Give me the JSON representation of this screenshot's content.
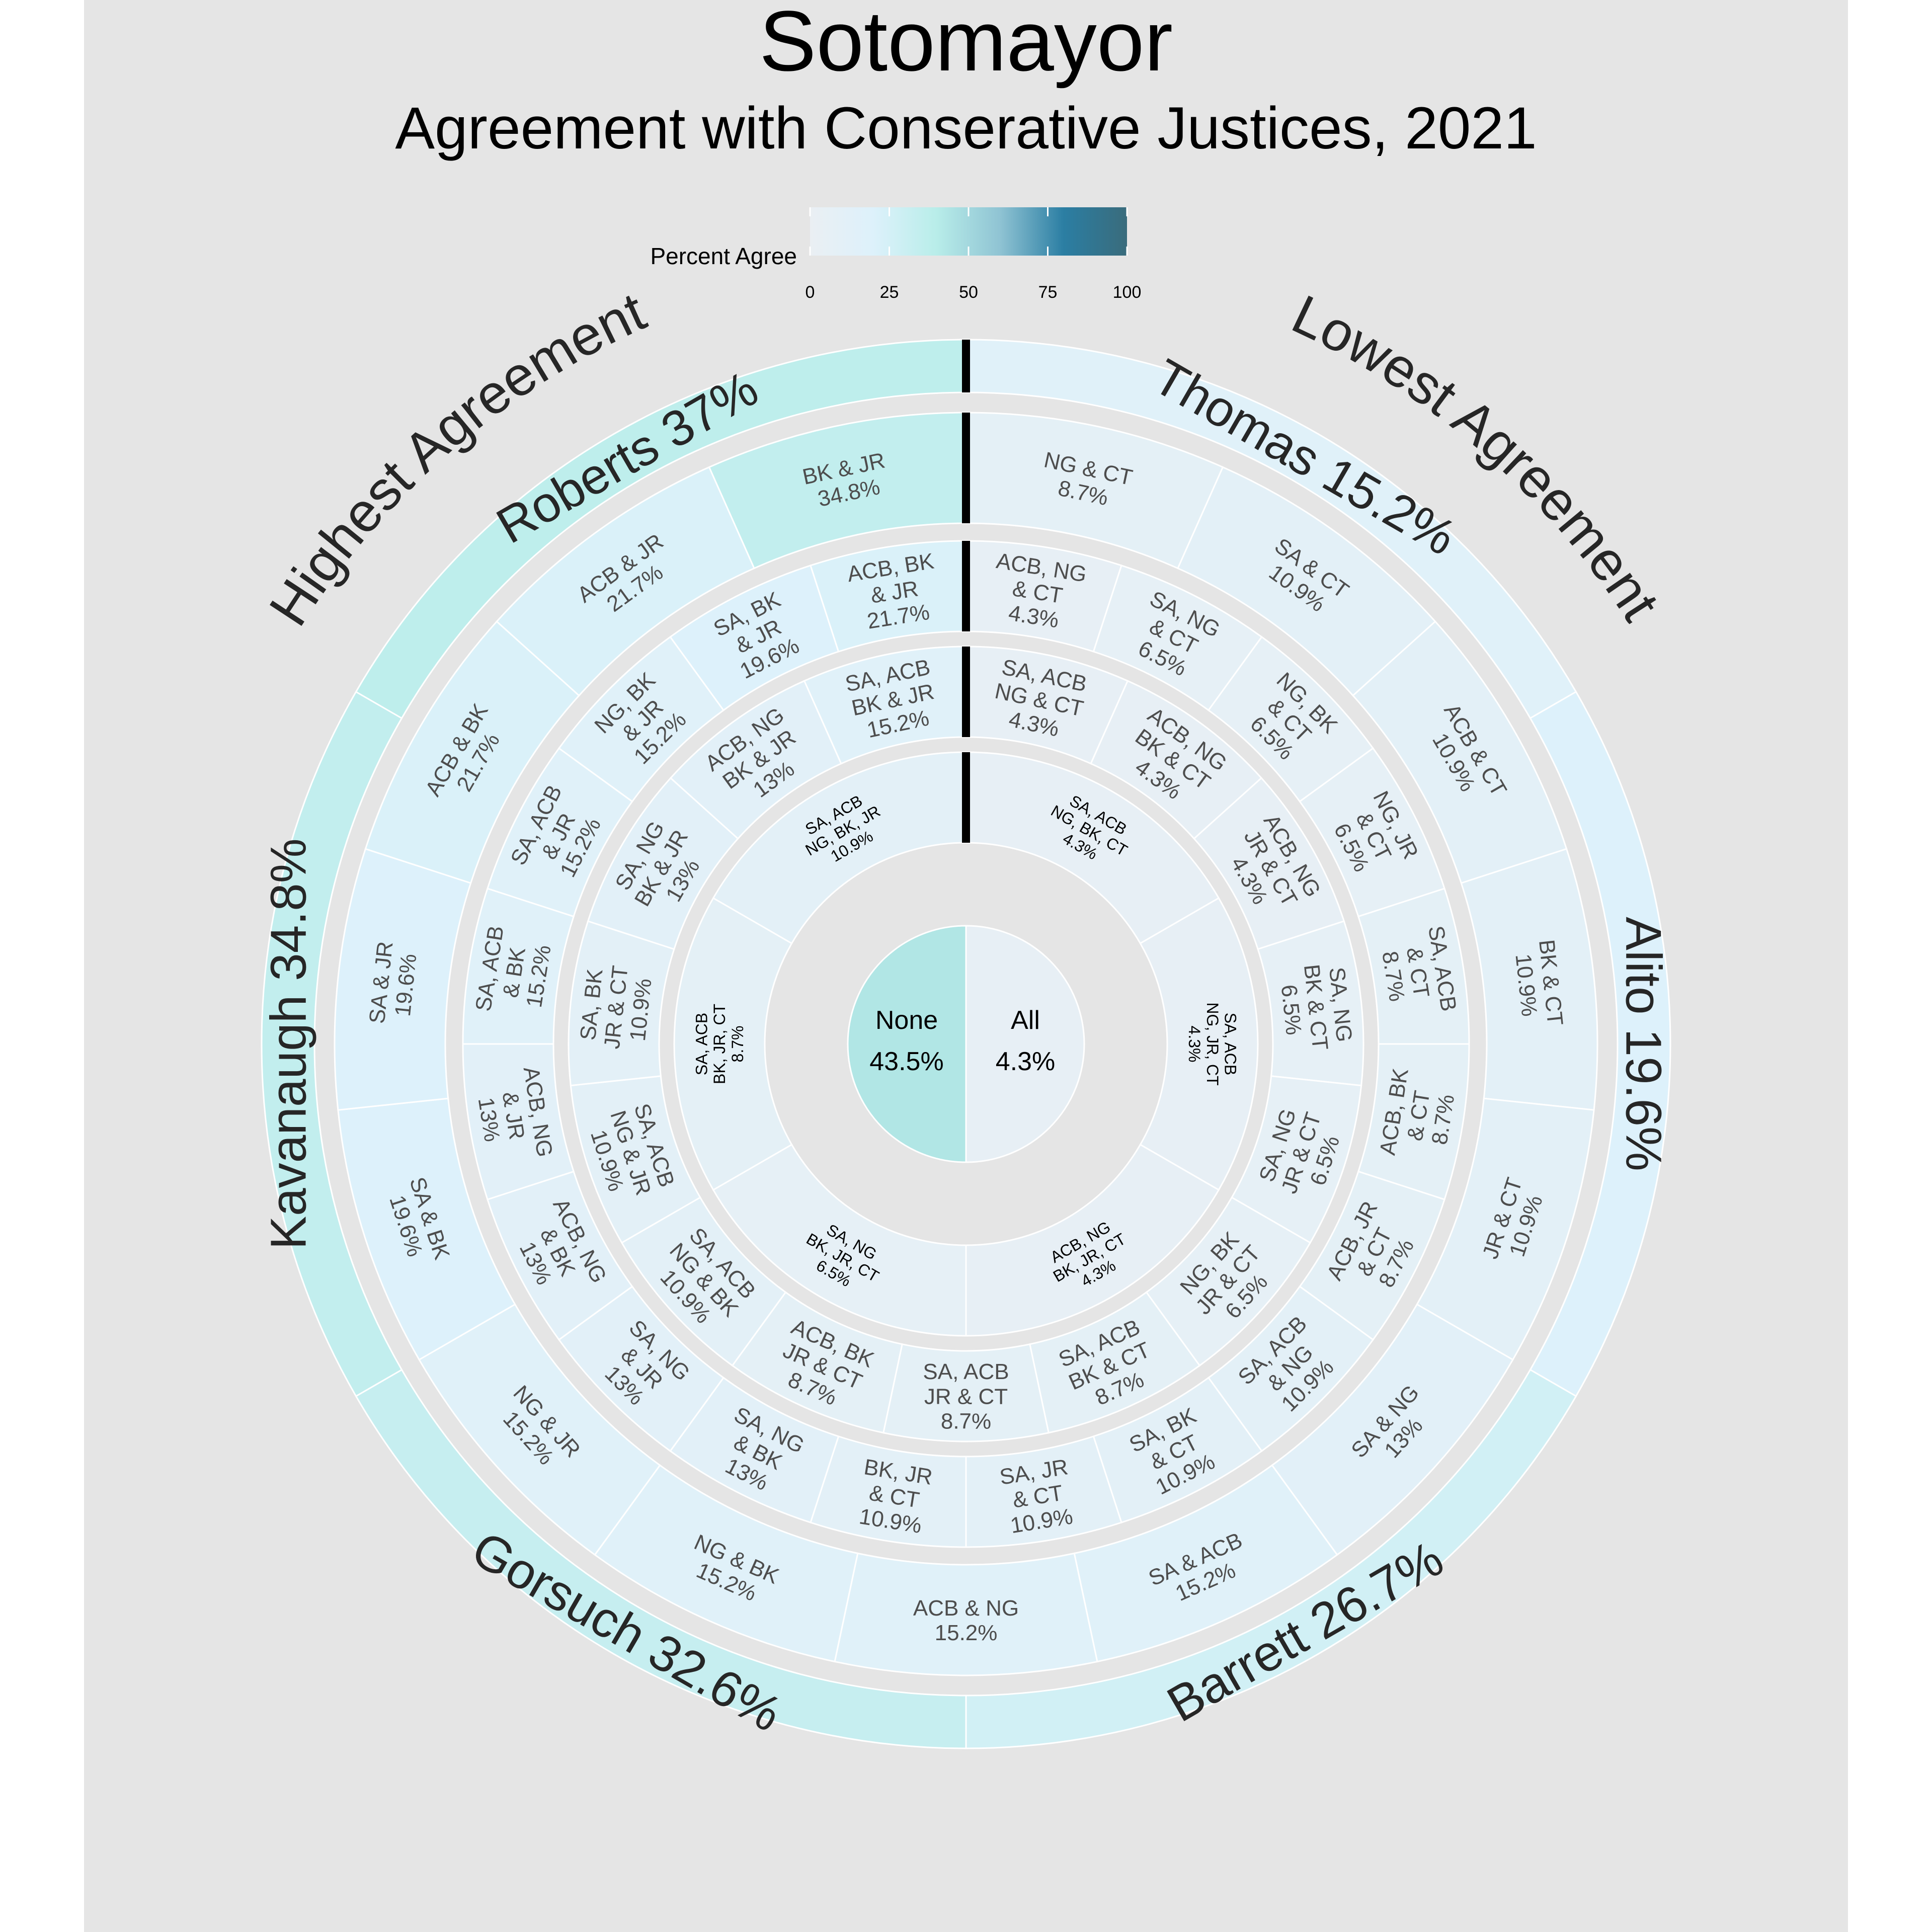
{
  "chart_data": {
    "type": "sunburst",
    "title": "Sotomayor",
    "subtitle": "Agreement with Conserative Justices, 2021",
    "legend": {
      "title": "Percent Agree",
      "ticks": [
        "0",
        "25",
        "50",
        "75",
        "100"
      ],
      "range": [
        0,
        100
      ],
      "colors": [
        "#eaeff3",
        "#ddf1fb",
        "#b8ede9",
        "#8fc3d3",
        "#2b7ea3",
        "#3a6c7c"
      ]
    },
    "outer_annotations": {
      "left": "Highest  Agreement",
      "right": "Lowest  Agreement"
    },
    "center": [
      {
        "label": "None",
        "value": "43.5%",
        "percent": 43.5
      },
      {
        "label": "All",
        "value": "4.3%",
        "percent": 4.3
      }
    ],
    "rings": [
      {
        "level": "one justice",
        "segments": [
          {
            "label": "Thomas 15.2%",
            "percent": 15.2
          },
          {
            "label": "Alito 19.6%",
            "percent": 19.6
          },
          {
            "label": "Barrett 26.7%",
            "percent": 26.7
          },
          {
            "label": "Gorsuch 32.6%",
            "percent": 32.6
          },
          {
            "label": "Kavanaugh 34.8%",
            "percent": 34.8
          },
          {
            "label": "Roberts 37%",
            "percent": 37.0
          }
        ]
      },
      {
        "level": "two justices",
        "segments": [
          {
            "label": "NG & CT",
            "value": "8.7%",
            "percent": 8.7
          },
          {
            "label": "SA & CT",
            "value": "10.9%",
            "percent": 10.9
          },
          {
            "label": "ACB & CT",
            "value": "10.9%",
            "percent": 10.9
          },
          {
            "label": "BK & CT",
            "value": "10.9%",
            "percent": 10.9
          },
          {
            "label": "JR & CT",
            "value": "10.9%",
            "percent": 10.9
          },
          {
            "label": "SA & NG",
            "value": "13%",
            "percent": 13.0
          },
          {
            "label": "SA & ACB",
            "value": "15.2%",
            "percent": 15.2
          },
          {
            "label": "ACB & NG",
            "value": "15.2%",
            "percent": 15.2
          },
          {
            "label": "NG & BK",
            "value": "15.2%",
            "percent": 15.2
          },
          {
            "label": "NG & JR",
            "value": "15.2%",
            "percent": 15.2
          },
          {
            "label": "SA & BK",
            "value": "19.6%",
            "percent": 19.6
          },
          {
            "label": "SA & JR",
            "value": "19.6%",
            "percent": 19.6
          },
          {
            "label": "ACB & BK",
            "value": "21.7%",
            "percent": 21.7
          },
          {
            "label": "ACB & JR",
            "value": "21.7%",
            "percent": 21.7
          },
          {
            "label": "BK & JR",
            "value": "34.8%",
            "percent": 34.8
          }
        ]
      },
      {
        "level": "three justices",
        "segments": [
          {
            "label": "ACB, NG|& CT",
            "value": "4.3%",
            "percent": 4.3
          },
          {
            "label": "SA, NG|& CT",
            "value": "6.5%",
            "percent": 6.5
          },
          {
            "label": "NG, BK|& CT",
            "value": "6.5%",
            "percent": 6.5
          },
          {
            "label": "NG, JR|& CT",
            "value": "6.5%",
            "percent": 6.5
          },
          {
            "label": "SA, ACB|& CT",
            "value": "8.7%",
            "percent": 8.7
          },
          {
            "label": "ACB, BK|& CT",
            "value": "8.7%",
            "percent": 8.7
          },
          {
            "label": "ACB, JR|& CT",
            "value": "8.7%",
            "percent": 8.7
          },
          {
            "label": "SA, ACB|& NG",
            "value": "10.9%",
            "percent": 10.9
          },
          {
            "label": "SA, BK|& CT",
            "value": "10.9%",
            "percent": 10.9
          },
          {
            "label": "SA, JR|& CT",
            "value": "10.9%",
            "percent": 10.9
          },
          {
            "label": "BK, JR|& CT",
            "value": "10.9%",
            "percent": 10.9
          },
          {
            "label": "SA, NG|& BK",
            "value": "13%",
            "percent": 13.0
          },
          {
            "label": "SA, NG|& JR",
            "value": "13%",
            "percent": 13.0
          },
          {
            "label": "ACB, NG|& BK",
            "value": "13%",
            "percent": 13.0
          },
          {
            "label": "ACB, NG|& JR",
            "value": "13%",
            "percent": 13.0
          },
          {
            "label": "SA, ACB|& BK",
            "value": "15.2%",
            "percent": 15.2
          },
          {
            "label": "SA, ACB|& JR",
            "value": "15.2%",
            "percent": 15.2
          },
          {
            "label": "NG, BK|& JR",
            "value": "15.2%",
            "percent": 15.2
          },
          {
            "label": "SA, BK|& JR",
            "value": "19.6%",
            "percent": 19.6
          },
          {
            "label": "ACB, BK|& JR",
            "value": "21.7%",
            "percent": 21.7
          }
        ]
      },
      {
        "level": "four justices",
        "segments": [
          {
            "label": "SA, ACB|NG & CT",
            "value": "4.3%",
            "percent": 4.3
          },
          {
            "label": "ACB, NG|BK & CT",
            "value": "4.3%",
            "percent": 4.3
          },
          {
            "label": "ACB, NG|JR & CT",
            "value": "4.3%",
            "percent": 4.3
          },
          {
            "label": "SA, NG|BK & CT",
            "value": "6.5%",
            "percent": 6.5
          },
          {
            "label": "SA, NG|JR & CT",
            "value": "6.5%",
            "percent": 6.5
          },
          {
            "label": "NG, BK|JR & CT",
            "value": "6.5%",
            "percent": 6.5
          },
          {
            "label": "SA, ACB|BK & CT",
            "value": "8.7%",
            "percent": 8.7
          },
          {
            "label": "SA, ACB|JR & CT",
            "value": "8.7%",
            "percent": 8.7
          },
          {
            "label": "ACB, BK|JR & CT",
            "value": "8.7%",
            "percent": 8.7
          },
          {
            "label": "SA, ACB|NG & BK",
            "value": "10.9%",
            "percent": 10.9
          },
          {
            "label": "SA, ACB|NG & JR",
            "value": "10.9%",
            "percent": 10.9
          },
          {
            "label": "SA, BK|JR & CT",
            "value": "10.9%",
            "percent": 10.9
          },
          {
            "label": "SA, NG|BK & JR",
            "value": "13%",
            "percent": 13.0
          },
          {
            "label": "ACB, NG|BK & JR",
            "value": "13%",
            "percent": 13.0
          },
          {
            "label": "SA, ACB|BK & JR",
            "value": "15.2%",
            "percent": 15.2
          }
        ]
      },
      {
        "level": "five justices",
        "segments": [
          {
            "label": "SA, ACB|NG, BK, CT",
            "value": "4.3%",
            "percent": 4.3
          },
          {
            "label": "SA, ACB|NG, JR, CT",
            "value": "4.3%",
            "percent": 4.3
          },
          {
            "label": "ACB, NG|BK, JR, CT",
            "value": "4.3%",
            "percent": 4.3
          },
          {
            "label": "SA, NG|BK, JR, CT",
            "value": "6.5%",
            "percent": 6.5
          },
          {
            "label": "SA, ACB|BK, JR, CT",
            "value": "8.7%",
            "percent": 8.7
          },
          {
            "label": "SA, ACB|NG, BK, JR",
            "value": "10.9%",
            "percent": 10.9
          }
        ]
      }
    ]
  }
}
